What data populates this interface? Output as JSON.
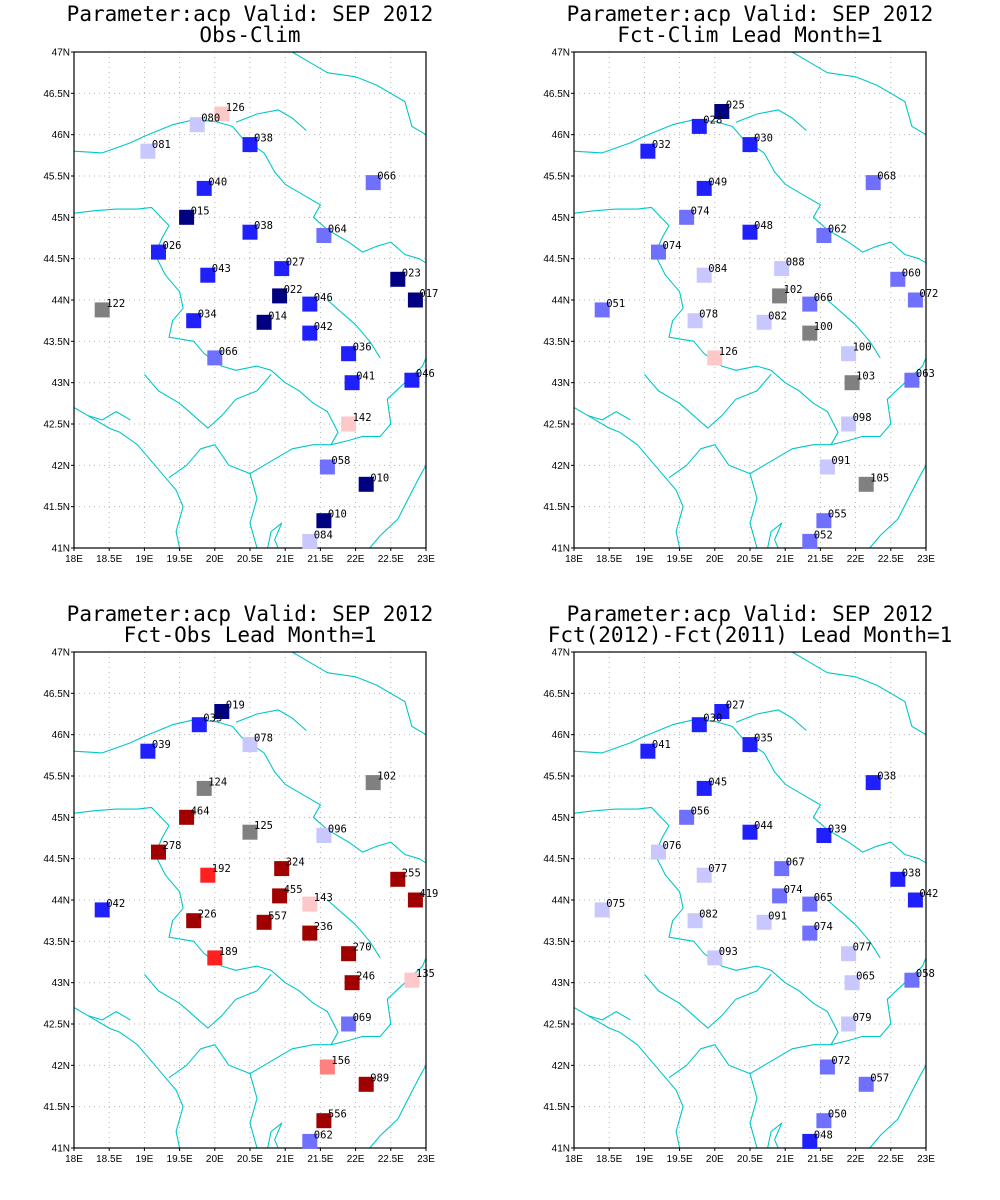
{
  "colors": {
    "c1": "#000080",
    "c2": "#2020ff",
    "c3": "#7070ff",
    "c4": "#c8c8ff",
    "c5": "#808080",
    "c6": "#ffc8c8",
    "c7": "#ff8080",
    "c8": "#ff2020",
    "c9": "#a00000",
    "border": "#00c8c8"
  },
  "axes": {
    "lon_ticks": [
      "18E",
      "18.5E",
      "19E",
      "19.5E",
      "20E",
      "20.5E",
      "21E",
      "21.5E",
      "22E",
      "22.5E",
      "23E"
    ],
    "lat_ticks": [
      "41N",
      "41.5N",
      "42N",
      "42.5N",
      "43N",
      "43.5N",
      "44N",
      "44.5N",
      "45N",
      "45.5N",
      "46N",
      "46.5N",
      "47N"
    ]
  },
  "chart_data": [
    {
      "type": "scatter",
      "title": "Parameter:acp Valid: SEP 2012",
      "subtitle": "Obs-Clim",
      "xlim": [
        18,
        23
      ],
      "ylim": [
        41,
        47
      ],
      "points": [
        {
          "x": 20.1,
          "y": 46.25,
          "label": "126",
          "c": "c6"
        },
        {
          "x": 19.75,
          "y": 46.12,
          "label": "080",
          "c": "c4"
        },
        {
          "x": 19.05,
          "y": 45.8,
          "label": "081",
          "c": "c4"
        },
        {
          "x": 20.5,
          "y": 45.88,
          "label": "038",
          "c": "c2"
        },
        {
          "x": 22.25,
          "y": 45.42,
          "label": "066",
          "c": "c3"
        },
        {
          "x": 19.85,
          "y": 45.35,
          "label": "040",
          "c": "c2"
        },
        {
          "x": 19.6,
          "y": 45.0,
          "label": "015",
          "c": "c1"
        },
        {
          "x": 20.5,
          "y": 44.82,
          "label": "038",
          "c": "c2"
        },
        {
          "x": 21.55,
          "y": 44.78,
          "label": "064",
          "c": "c3"
        },
        {
          "x": 19.2,
          "y": 44.58,
          "label": "026",
          "c": "c2"
        },
        {
          "x": 19.9,
          "y": 44.3,
          "label": "043",
          "c": "c2"
        },
        {
          "x": 20.95,
          "y": 44.38,
          "label": "027",
          "c": "c2"
        },
        {
          "x": 22.6,
          "y": 44.25,
          "label": "023",
          "c": "c1"
        },
        {
          "x": 20.92,
          "y": 44.05,
          "label": "022",
          "c": "c1"
        },
        {
          "x": 21.35,
          "y": 43.95,
          "label": "046",
          "c": "c2"
        },
        {
          "x": 22.85,
          "y": 44.0,
          "label": "017",
          "c": "c1"
        },
        {
          "x": 18.4,
          "y": 43.88,
          "label": "122",
          "c": "c5"
        },
        {
          "x": 19.7,
          "y": 43.75,
          "label": "034",
          "c": "c2"
        },
        {
          "x": 20.7,
          "y": 43.73,
          "label": "014",
          "c": "c1"
        },
        {
          "x": 21.35,
          "y": 43.6,
          "label": "042",
          "c": "c2"
        },
        {
          "x": 21.9,
          "y": 43.35,
          "label": "036",
          "c": "c2"
        },
        {
          "x": 20.0,
          "y": 43.3,
          "label": "066",
          "c": "c3"
        },
        {
          "x": 21.95,
          "y": 43.0,
          "label": "041",
          "c": "c2"
        },
        {
          "x": 22.8,
          "y": 43.03,
          "label": "046",
          "c": "c2"
        },
        {
          "x": 21.9,
          "y": 42.5,
          "label": "142",
          "c": "c6"
        },
        {
          "x": 21.6,
          "y": 41.98,
          "label": "058",
          "c": "c3"
        },
        {
          "x": 22.15,
          "y": 41.77,
          "label": "010",
          "c": "c1"
        },
        {
          "x": 21.55,
          "y": 41.33,
          "label": "010",
          "c": "c1"
        },
        {
          "x": 21.35,
          "y": 41.08,
          "label": "084",
          "c": "c4"
        }
      ]
    },
    {
      "type": "scatter",
      "title": "Parameter:acp Valid: SEP 2012",
      "subtitle": "Fct-Clim Lead Month=1",
      "xlim": [
        18,
        23
      ],
      "ylim": [
        41,
        47
      ],
      "points": [
        {
          "x": 20.1,
          "y": 46.28,
          "label": "025",
          "c": "c1"
        },
        {
          "x": 19.78,
          "y": 46.1,
          "label": "028",
          "c": "c2"
        },
        {
          "x": 19.05,
          "y": 45.8,
          "label": "032",
          "c": "c2"
        },
        {
          "x": 20.5,
          "y": 45.88,
          "label": "030",
          "c": "c2"
        },
        {
          "x": 22.25,
          "y": 45.42,
          "label": "068",
          "c": "c3"
        },
        {
          "x": 19.85,
          "y": 45.35,
          "label": "049",
          "c": "c2"
        },
        {
          "x": 19.6,
          "y": 45.0,
          "label": "074",
          "c": "c3"
        },
        {
          "x": 20.5,
          "y": 44.82,
          "label": "048",
          "c": "c2"
        },
        {
          "x": 21.55,
          "y": 44.78,
          "label": "062",
          "c": "c3"
        },
        {
          "x": 19.2,
          "y": 44.58,
          "label": "074",
          "c": "c3"
        },
        {
          "x": 19.85,
          "y": 44.3,
          "label": "084",
          "c": "c4"
        },
        {
          "x": 20.95,
          "y": 44.38,
          "label": "088",
          "c": "c4"
        },
        {
          "x": 22.6,
          "y": 44.25,
          "label": "060",
          "c": "c3"
        },
        {
          "x": 20.92,
          "y": 44.05,
          "label": "102",
          "c": "c5"
        },
        {
          "x": 21.35,
          "y": 43.95,
          "label": "066",
          "c": "c3"
        },
        {
          "x": 22.85,
          "y": 44.0,
          "label": "072",
          "c": "c3"
        },
        {
          "x": 18.4,
          "y": 43.88,
          "label": "051",
          "c": "c3"
        },
        {
          "x": 19.72,
          "y": 43.75,
          "label": "078",
          "c": "c4"
        },
        {
          "x": 20.7,
          "y": 43.73,
          "label": "082",
          "c": "c4"
        },
        {
          "x": 21.35,
          "y": 43.6,
          "label": "100",
          "c": "c5"
        },
        {
          "x": 21.9,
          "y": 43.35,
          "label": "100",
          "c": "c4"
        },
        {
          "x": 20.0,
          "y": 43.3,
          "label": "126",
          "c": "c6"
        },
        {
          "x": 21.95,
          "y": 43.0,
          "label": "103",
          "c": "c5"
        },
        {
          "x": 22.8,
          "y": 43.03,
          "label": "063",
          "c": "c3"
        },
        {
          "x": 21.9,
          "y": 42.5,
          "label": "098",
          "c": "c4"
        },
        {
          "x": 21.6,
          "y": 41.98,
          "label": "091",
          "c": "c4"
        },
        {
          "x": 22.15,
          "y": 41.77,
          "label": "105",
          "c": "c5"
        },
        {
          "x": 21.55,
          "y": 41.33,
          "label": "055",
          "c": "c3"
        },
        {
          "x": 21.35,
          "y": 41.08,
          "label": "052",
          "c": "c3"
        }
      ]
    },
    {
      "type": "scatter",
      "title": "Parameter:acp Valid: SEP 2012",
      "subtitle": "Fct-Obs Lead Month=1",
      "xlim": [
        18,
        23
      ],
      "ylim": [
        41,
        47
      ],
      "points": [
        {
          "x": 20.1,
          "y": 46.28,
          "label": "019",
          "c": "c1"
        },
        {
          "x": 19.78,
          "y": 46.12,
          "label": "035",
          "c": "c2"
        },
        {
          "x": 19.05,
          "y": 45.8,
          "label": "039",
          "c": "c2"
        },
        {
          "x": 20.5,
          "y": 45.88,
          "label": "078",
          "c": "c4"
        },
        {
          "x": 22.25,
          "y": 45.42,
          "label": "102",
          "c": "c5"
        },
        {
          "x": 19.85,
          "y": 45.35,
          "label": "124",
          "c": "c5"
        },
        {
          "x": 19.6,
          "y": 45.0,
          "label": "464",
          "c": "c9"
        },
        {
          "x": 20.5,
          "y": 44.82,
          "label": "125",
          "c": "c5"
        },
        {
          "x": 21.55,
          "y": 44.78,
          "label": "096",
          "c": "c4"
        },
        {
          "x": 19.2,
          "y": 44.58,
          "label": "278",
          "c": "c9"
        },
        {
          "x": 19.9,
          "y": 44.3,
          "label": "192",
          "c": "c8"
        },
        {
          "x": 20.95,
          "y": 44.38,
          "label": "324",
          "c": "c9"
        },
        {
          "x": 22.6,
          "y": 44.25,
          "label": "255",
          "c": "c9"
        },
        {
          "x": 20.92,
          "y": 44.05,
          "label": "455",
          "c": "c9"
        },
        {
          "x": 21.35,
          "y": 43.95,
          "label": "143",
          "c": "c6"
        },
        {
          "x": 22.85,
          "y": 44.0,
          "label": "419",
          "c": "c9"
        },
        {
          "x": 18.4,
          "y": 43.88,
          "label": "042",
          "c": "c2"
        },
        {
          "x": 19.7,
          "y": 43.75,
          "label": "226",
          "c": "c9"
        },
        {
          "x": 20.7,
          "y": 43.73,
          "label": "557",
          "c": "c9"
        },
        {
          "x": 21.35,
          "y": 43.6,
          "label": "236",
          "c": "c9"
        },
        {
          "x": 21.9,
          "y": 43.35,
          "label": "270",
          "c": "c9"
        },
        {
          "x": 20.0,
          "y": 43.3,
          "label": "189",
          "c": "c8"
        },
        {
          "x": 21.95,
          "y": 43.0,
          "label": "246",
          "c": "c9"
        },
        {
          "x": 22.8,
          "y": 43.03,
          "label": "135",
          "c": "c6"
        },
        {
          "x": 21.9,
          "y": 42.5,
          "label": "069",
          "c": "c3"
        },
        {
          "x": 21.6,
          "y": 41.98,
          "label": "156",
          "c": "c7"
        },
        {
          "x": 22.15,
          "y": 41.77,
          "label": "989",
          "c": "c9"
        },
        {
          "x": 21.55,
          "y": 41.33,
          "label": "556",
          "c": "c9"
        },
        {
          "x": 21.35,
          "y": 41.08,
          "label": "062",
          "c": "c3"
        }
      ]
    },
    {
      "type": "scatter",
      "title": "Parameter:acp Valid: SEP 2012",
      "subtitle": "Fct(2012)-Fct(2011) Lead Month=1",
      "xlim": [
        18,
        23
      ],
      "ylim": [
        41,
        47
      ],
      "points": [
        {
          "x": 20.1,
          "y": 46.28,
          "label": "027",
          "c": "c2"
        },
        {
          "x": 19.78,
          "y": 46.12,
          "label": "030",
          "c": "c2"
        },
        {
          "x": 19.05,
          "y": 45.8,
          "label": "041",
          "c": "c2"
        },
        {
          "x": 20.5,
          "y": 45.88,
          "label": "035",
          "c": "c2"
        },
        {
          "x": 22.25,
          "y": 45.42,
          "label": "038",
          "c": "c2"
        },
        {
          "x": 19.85,
          "y": 45.35,
          "label": "045",
          "c": "c2"
        },
        {
          "x": 19.6,
          "y": 45.0,
          "label": "056",
          "c": "c3"
        },
        {
          "x": 20.5,
          "y": 44.82,
          "label": "044",
          "c": "c2"
        },
        {
          "x": 21.55,
          "y": 44.78,
          "label": "039",
          "c": "c2"
        },
        {
          "x": 19.2,
          "y": 44.58,
          "label": "076",
          "c": "c4"
        },
        {
          "x": 19.85,
          "y": 44.3,
          "label": "077",
          "c": "c4"
        },
        {
          "x": 20.95,
          "y": 44.38,
          "label": "067",
          "c": "c3"
        },
        {
          "x": 22.6,
          "y": 44.25,
          "label": "038",
          "c": "c2"
        },
        {
          "x": 20.92,
          "y": 44.05,
          "label": "074",
          "c": "c3"
        },
        {
          "x": 21.35,
          "y": 43.95,
          "label": "065",
          "c": "c3"
        },
        {
          "x": 22.85,
          "y": 44.0,
          "label": "042",
          "c": "c2"
        },
        {
          "x": 18.4,
          "y": 43.88,
          "label": "075",
          "c": "c4"
        },
        {
          "x": 19.72,
          "y": 43.75,
          "label": "082",
          "c": "c4"
        },
        {
          "x": 20.7,
          "y": 43.73,
          "label": "091",
          "c": "c4"
        },
        {
          "x": 21.35,
          "y": 43.6,
          "label": "074",
          "c": "c3"
        },
        {
          "x": 21.9,
          "y": 43.35,
          "label": "077",
          "c": "c4"
        },
        {
          "x": 20.0,
          "y": 43.3,
          "label": "093",
          "c": "c4"
        },
        {
          "x": 21.95,
          "y": 43.0,
          "label": "065",
          "c": "c4"
        },
        {
          "x": 22.8,
          "y": 43.03,
          "label": "058",
          "c": "c3"
        },
        {
          "x": 21.9,
          "y": 42.5,
          "label": "079",
          "c": "c4"
        },
        {
          "x": 21.6,
          "y": 41.98,
          "label": "072",
          "c": "c3"
        },
        {
          "x": 22.15,
          "y": 41.77,
          "label": "057",
          "c": "c3"
        },
        {
          "x": 21.55,
          "y": 41.33,
          "label": "050",
          "c": "c3"
        },
        {
          "x": 21.35,
          "y": 41.08,
          "label": "048",
          "c": "c2"
        }
      ]
    }
  ]
}
